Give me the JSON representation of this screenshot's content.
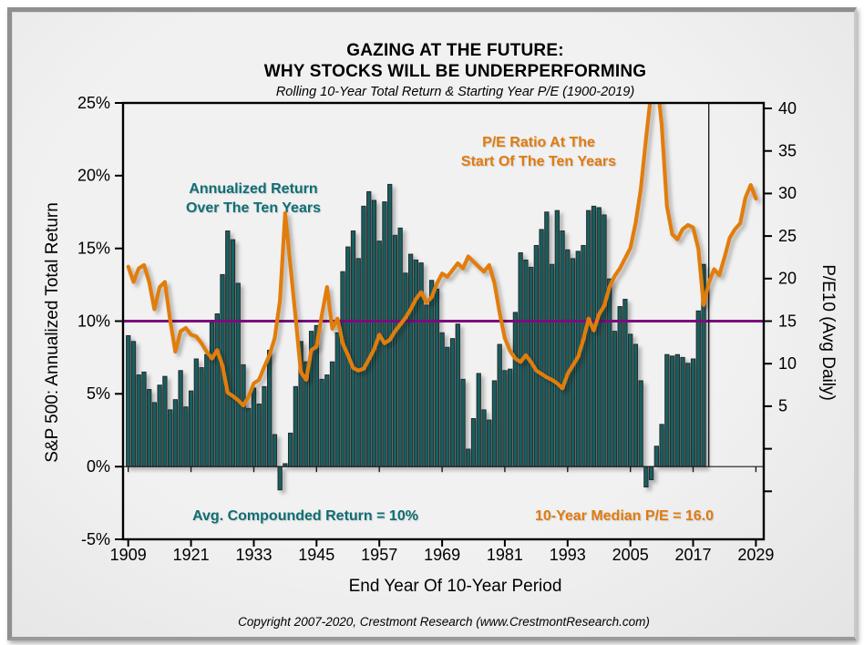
{
  "title": {
    "line1": "GAZING AT THE FUTURE:",
    "line2": "WHY STOCKS WILL BE UNDERPERFORMING",
    "subtitle": "Rolling 10-Year Total Return & Starting Year P/E (1900-2019)"
  },
  "footer": {
    "copyright": "Copyright 2007-2020, Crestmont Research (www.CrestmontResearch.com)"
  },
  "annotations": {
    "bars_label_line1": "Annualized Return",
    "bars_label_line2": "Over The Ten Years",
    "pe_label_line1": "P/E Ratio At The",
    "pe_label_line2": "Start Of The Ten Years",
    "avg_return": "Avg. Compounded Return = 10%",
    "median_pe": "10-Year Median P/E = 16.0"
  },
  "colors": {
    "bar_fill": "#155f61",
    "bar_stroke": "#2a2a2a",
    "pe_line": "#e17d0f",
    "avg_line": "#7d0b7d",
    "teal_text": "#0e6e74",
    "orange_text": "#e07b10",
    "axis": "#000000",
    "background": "#efefef"
  },
  "chart_data": {
    "type": "combo",
    "title": "Rolling 10-Year Total Return & Starting Year P/E (1900-2019)",
    "x_axis": {
      "label": "End Year Of 10-Year Period",
      "tick_years": [
        1909,
        1921,
        1933,
        1945,
        1957,
        1969,
        1981,
        1993,
        2005,
        2017,
        2029
      ],
      "range": [
        1908,
        2030.5
      ]
    },
    "left_axis": {
      "title": "S&P 500: Annualized Total Return",
      "tick_labels": [
        "25%",
        "20%",
        "15%",
        "10%",
        "5%",
        "0%",
        "-5%"
      ],
      "tick_values": [
        25,
        20,
        15,
        10,
        5,
        0,
        -5
      ],
      "range": [
        -5,
        25
      ]
    },
    "right_axis": {
      "title": "P/E10 (Avg Daily)",
      "tick_values": [
        40,
        35,
        30,
        25,
        20,
        15,
        10,
        5
      ],
      "unlabeled_tick_values": [
        0,
        -5
      ],
      "pe_ref": 15,
      "pct_ref": 10,
      "pct_per_pe": 0.585
    },
    "reference_year_line": 2020,
    "grid": false,
    "legend_position": "none",
    "series": [
      {
        "name": "Annualized Return Over The Ten Years",
        "type": "bar",
        "axis": "left",
        "start_year": 1909,
        "values": [
          9.0,
          8.6,
          6.3,
          6.5,
          5.3,
          4.4,
          5.6,
          6.2,
          3.9,
          4.6,
          6.6,
          4.1,
          5.2,
          7.4,
          6.8,
          7.7,
          9.9,
          10.5,
          13.2,
          16.2,
          15.6,
          12.6,
          7.0,
          4.0,
          5.4,
          4.3,
          5.5,
          8.0,
          2.2,
          -1.6,
          0.2,
          2.3,
          5.5,
          8.6,
          7.2,
          9.3,
          9.7,
          6.0,
          6.3,
          7.2,
          9.2,
          13.4,
          15.1,
          16.2,
          14.3,
          17.9,
          18.9,
          18.3,
          15.5,
          18.2,
          19.4,
          15.9,
          16.4,
          13.3,
          14.6,
          14.2,
          14.0,
          11.1,
          12.8,
          12.2,
          9.2,
          8.2,
          8.8,
          9.8,
          6.0,
          1.2,
          3.3,
          6.4,
          3.9,
          3.2,
          5.9,
          8.4,
          6.6,
          6.7,
          10.6,
          14.7,
          14.2,
          13.7,
          15.2,
          16.3,
          17.5,
          13.9,
          17.6,
          16.2,
          14.9,
          14.3,
          14.8,
          15.2,
          17.6,
          17.9,
          17.8,
          17.3,
          12.9,
          9.3,
          11.0,
          11.5,
          9.1,
          8.4,
          5.9,
          -1.4,
          -0.9,
          1.4,
          2.9,
          7.7,
          7.6,
          7.7,
          7.5,
          7.1,
          7.4,
          10.7,
          13.9
        ]
      },
      {
        "name": "P/E Ratio At The Start Of The Ten Years",
        "type": "line",
        "axis": "right",
        "start_year": 1909,
        "values": [
          21.4,
          19.6,
          21.2,
          21.6,
          19.6,
          16.4,
          19.0,
          19.6,
          15.2,
          11.4,
          13.8,
          14.2,
          13.4,
          13.2,
          12.4,
          11.4,
          10.6,
          11.6,
          9.8,
          6.6,
          6.2,
          5.7,
          5.1,
          6.1,
          7.7,
          8.1,
          9.6,
          11.0,
          13.0,
          17.4,
          27.7,
          21.6,
          15.4,
          9.0,
          8.1,
          11.6,
          12.0,
          15.7,
          19.0,
          14.1,
          15.3,
          12.4,
          11.0,
          9.5,
          9.2,
          9.4,
          10.5,
          11.7,
          13.4,
          12.4,
          12.8,
          13.8,
          14.6,
          15.4,
          16.4,
          17.6,
          18.4,
          17.2,
          17.8,
          19.4,
          20.6,
          20.2,
          21.0,
          21.8,
          21.2,
          22.6,
          22.0,
          21.4,
          20.8,
          21.6,
          19.5,
          16.0,
          13.0,
          11.5,
          10.6,
          10.2,
          11.0,
          10.2,
          9.2,
          8.8,
          8.4,
          8.1,
          7.7,
          7.1,
          8.8,
          9.8,
          10.8,
          12.8,
          15.3,
          13.9,
          15.8,
          16.8,
          19.0,
          20.3,
          21.2,
          22.4,
          23.6,
          26.5,
          30.5,
          36.5,
          42.0,
          44.0,
          38.0,
          28.5,
          25.2,
          24.6,
          25.8,
          26.3,
          26.0,
          23.5,
          16.9,
          19.5,
          21.1,
          20.4,
          22.5,
          24.8,
          25.8,
          26.5,
          29.5,
          31.0,
          29.4
        ]
      },
      {
        "name": "Avg. Compounded Return = 10%",
        "type": "constant-line",
        "axis": "left",
        "value": 10
      }
    ]
  }
}
